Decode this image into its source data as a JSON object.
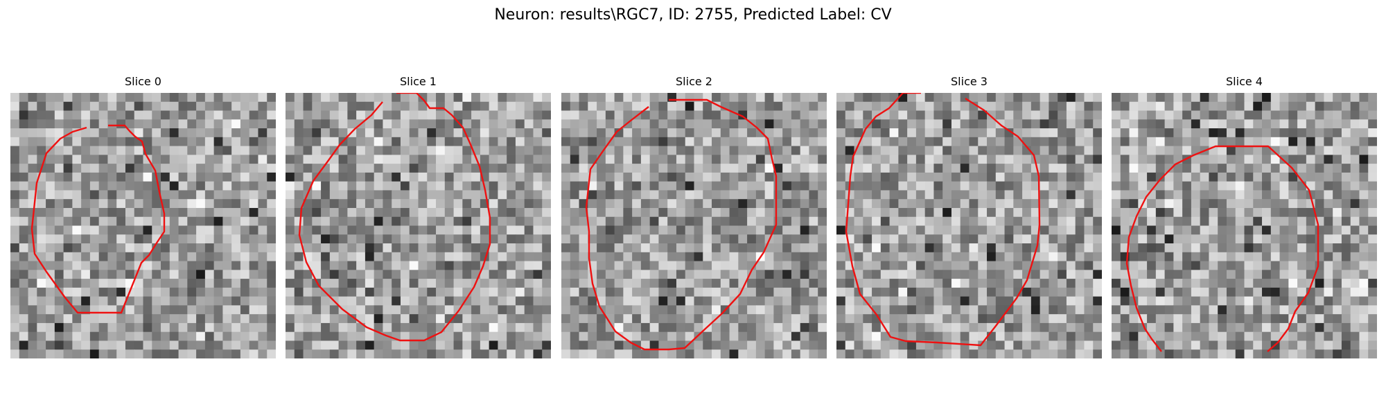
{
  "figure": {
    "title": "Neuron: results\\RGC7, ID: 2755, Predicted Label: CV"
  },
  "colors": {
    "contour": "#ee1111",
    "background": "#ffffff"
  },
  "slices": [
    {
      "label": "Slice 0"
    },
    {
      "label": "Slice 1"
    },
    {
      "label": "Slice 2"
    },
    {
      "label": "Slice 3"
    },
    {
      "label": "Slice 4"
    }
  ]
}
